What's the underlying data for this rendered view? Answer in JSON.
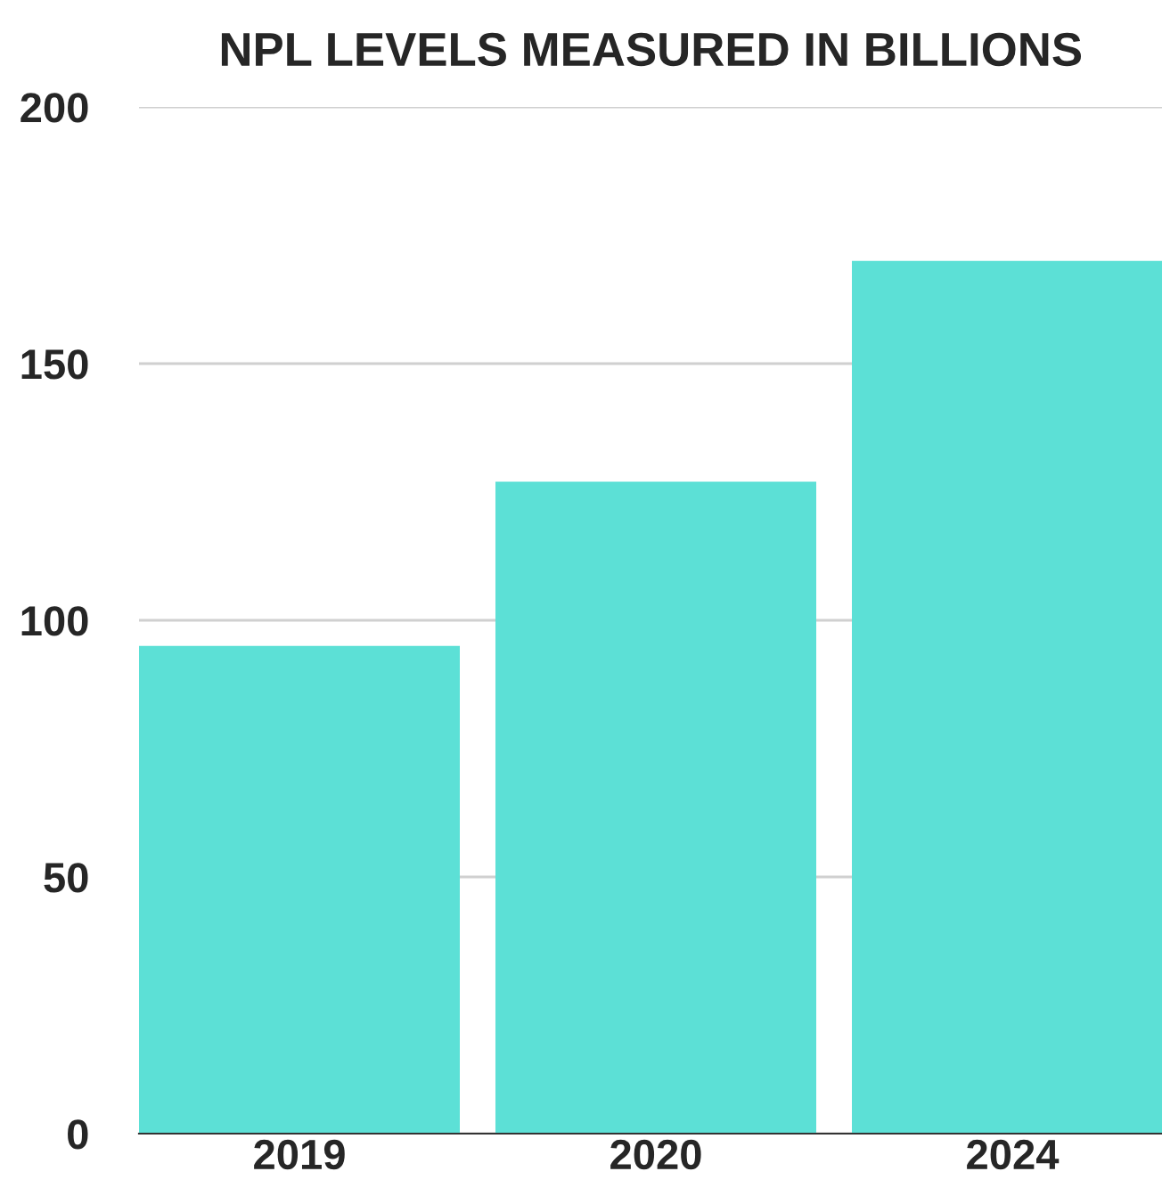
{
  "chart_data": {
    "type": "bar",
    "title": "NPL LEVELS MEASURED IN BILLIONS",
    "categories": [
      "2019",
      "2020",
      "2024"
    ],
    "values": [
      95,
      127,
      170
    ],
    "color": "#5ce0d6",
    "ylim": [
      0,
      200
    ],
    "yticks": [
      0,
      50,
      100,
      150,
      200
    ],
    "grid": "y"
  }
}
